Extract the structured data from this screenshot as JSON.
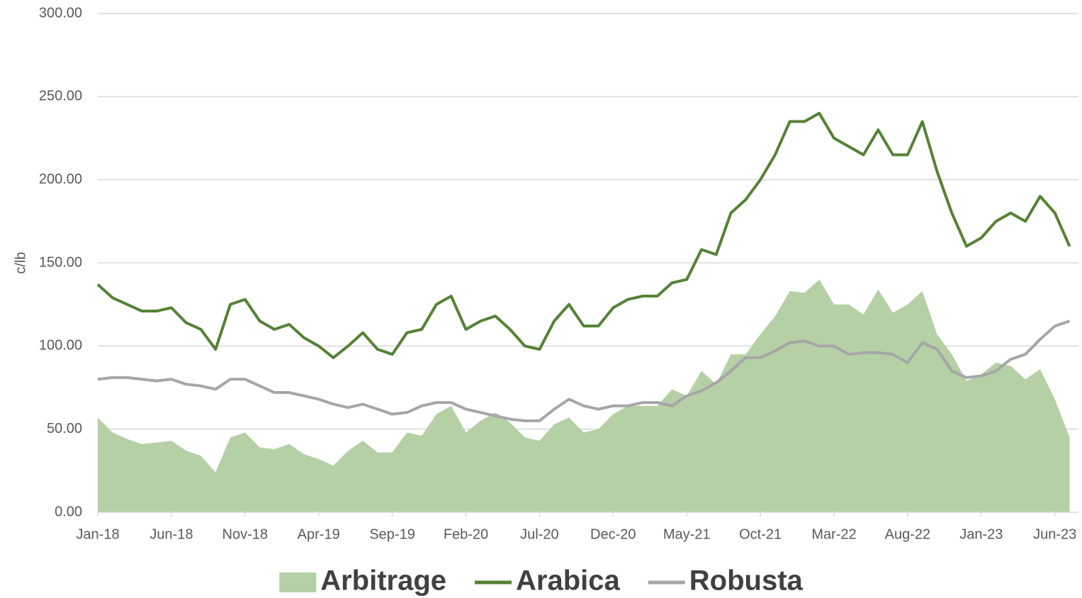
{
  "chart_data": {
    "type": "line",
    "y_label": "c/lb",
    "categories": [
      "Jan-18",
      null,
      null,
      null,
      null,
      "Jun-18",
      null,
      null,
      null,
      null,
      "Nov-18",
      null,
      null,
      null,
      null,
      "Apr-19",
      null,
      null,
      null,
      null,
      "Sep-19",
      null,
      null,
      null,
      null,
      "Feb-20",
      null,
      null,
      null,
      null,
      "Jul-20",
      null,
      null,
      null,
      null,
      "Dec-20",
      null,
      null,
      null,
      null,
      "May-21",
      null,
      null,
      null,
      null,
      "Oct-21",
      null,
      null,
      null,
      null,
      "Mar-22",
      null,
      null,
      null,
      null,
      "Aug-22",
      null,
      null,
      null,
      null,
      "Jan-23",
      null,
      null,
      null,
      null,
      "Jun-23",
      null
    ],
    "series": [
      {
        "name": "Arbitrage",
        "kind": "area",
        "color": "#b5d0a5",
        "values": [
          57,
          48,
          44,
          41,
          42,
          43,
          37,
          34,
          24,
          45,
          48,
          39,
          38,
          41,
          35,
          32,
          28,
          37,
          43,
          36,
          36,
          48,
          46,
          59,
          64,
          48,
          55,
          60,
          54,
          45,
          43,
          53,
          57,
          48,
          50,
          59,
          64,
          64,
          64,
          74,
          70,
          85,
          77,
          95,
          95,
          107,
          118,
          133,
          132,
          140,
          125,
          125,
          119,
          134,
          120,
          125,
          133,
          107,
          95,
          79,
          83,
          90,
          88,
          80,
          86,
          68,
          45
        ]
      },
      {
        "name": "Arabica",
        "kind": "line",
        "color": "#548235",
        "values": [
          137,
          129,
          125,
          121,
          121,
          123,
          114,
          110,
          98,
          125,
          128,
          115,
          110,
          113,
          105,
          100,
          93,
          100,
          108,
          98,
          95,
          108,
          110,
          125,
          130,
          110,
          115,
          118,
          110,
          100,
          98,
          115,
          125,
          112,
          112,
          123,
          128,
          130,
          130,
          138,
          140,
          158,
          155,
          180,
          188,
          200,
          215,
          235,
          235,
          240,
          225,
          220,
          215,
          230,
          215,
          215,
          235,
          205,
          180,
          160,
          165,
          175,
          180,
          175,
          190,
          180,
          160
        ]
      },
      {
        "name": "Robusta",
        "kind": "line",
        "color": "#a6a6a6",
        "values": [
          80,
          81,
          81,
          80,
          79,
          80,
          77,
          76,
          74,
          80,
          80,
          76,
          72,
          72,
          70,
          68,
          65,
          63,
          65,
          62,
          59,
          60,
          64,
          66,
          66,
          62,
          60,
          58,
          56,
          55,
          55,
          62,
          68,
          64,
          62,
          64,
          64,
          66,
          66,
          64,
          70,
          73,
          78,
          85,
          93,
          93,
          97,
          102,
          103,
          100,
          100,
          95,
          96,
          96,
          95,
          90,
          102,
          98,
          85,
          81,
          82,
          85,
          92,
          95,
          104,
          112,
          115
        ]
      }
    ],
    "ylim": [
      0,
      300
    ],
    "yticks": [
      {
        "value": 0,
        "label": "0.00"
      },
      {
        "value": 50,
        "label": "50.00"
      },
      {
        "value": 100,
        "label": "100.00"
      },
      {
        "value": 150,
        "label": "150.00"
      },
      {
        "value": 200,
        "label": "200.00"
      },
      {
        "value": 250,
        "label": "250.00"
      },
      {
        "value": 300,
        "label": "300.00"
      }
    ],
    "grid": true,
    "legend": "bottom"
  }
}
